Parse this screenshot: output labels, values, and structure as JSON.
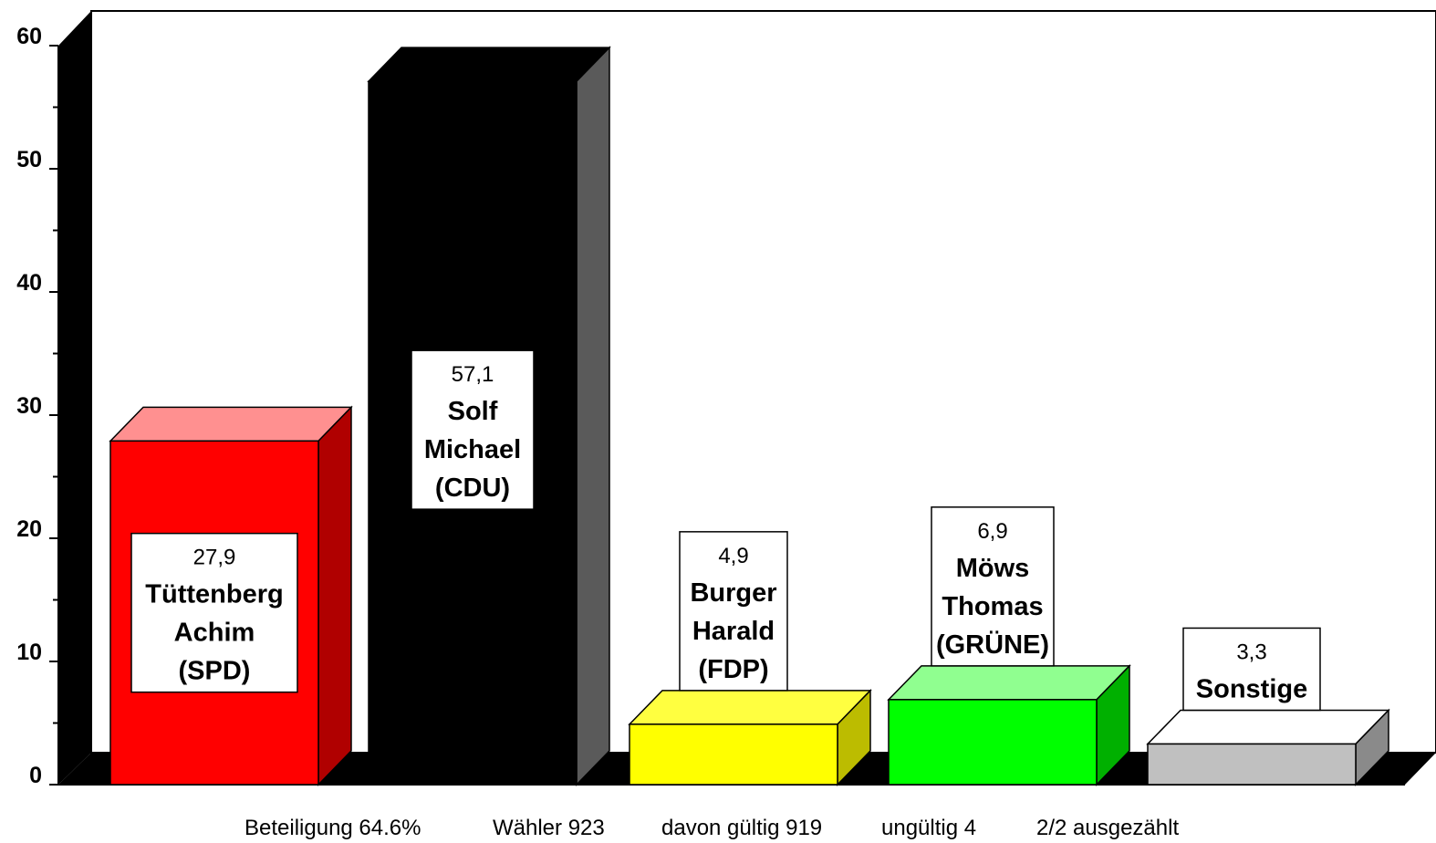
{
  "chart_data": {
    "type": "bar",
    "ylim": [
      0,
      60
    ],
    "yticks": [
      "0",
      "10",
      "20",
      "30",
      "40",
      "50",
      "60"
    ],
    "bars": [
      {
        "value": 27.9,
        "value_label": "27,9",
        "name_lines": [
          "Tüttenberg",
          "Achim",
          "(SPD)"
        ],
        "color_front": "#ff0000",
        "color_top": "#ff9090",
        "color_side": "#b00000"
      },
      {
        "value": 57.1,
        "value_label": "57,1",
        "name_lines": [
          "Solf",
          "Michael",
          "(CDU)"
        ],
        "color_front": "#000000",
        "color_top": "#000000",
        "color_side": "#5a5a5a"
      },
      {
        "value": 4.9,
        "value_label": "4,9",
        "name_lines": [
          "Burger",
          "Harald",
          "(FDP)"
        ],
        "color_front": "#ffff00",
        "color_top": "#ffff40",
        "color_side": "#bcbc00"
      },
      {
        "value": 6.9,
        "value_label": "6,9",
        "name_lines": [
          "Möws",
          "Thomas",
          "(GRÜNE)"
        ],
        "color_front": "#00ff00",
        "color_top": "#90ff90",
        "color_side": "#00b000"
      },
      {
        "value": 3.3,
        "value_label": "3,3",
        "name_lines": [
          "Sonstige"
        ],
        "color_front": "#c0c0c0",
        "color_top": "#ffffff",
        "color_side": "#8a8a8a"
      }
    ]
  },
  "footer": {
    "items": [
      "Beteiligung 64.6%",
      "Wähler 923",
      "davon gültig 919",
      "ungültig 4",
      "2/2 ausgezählt"
    ]
  }
}
